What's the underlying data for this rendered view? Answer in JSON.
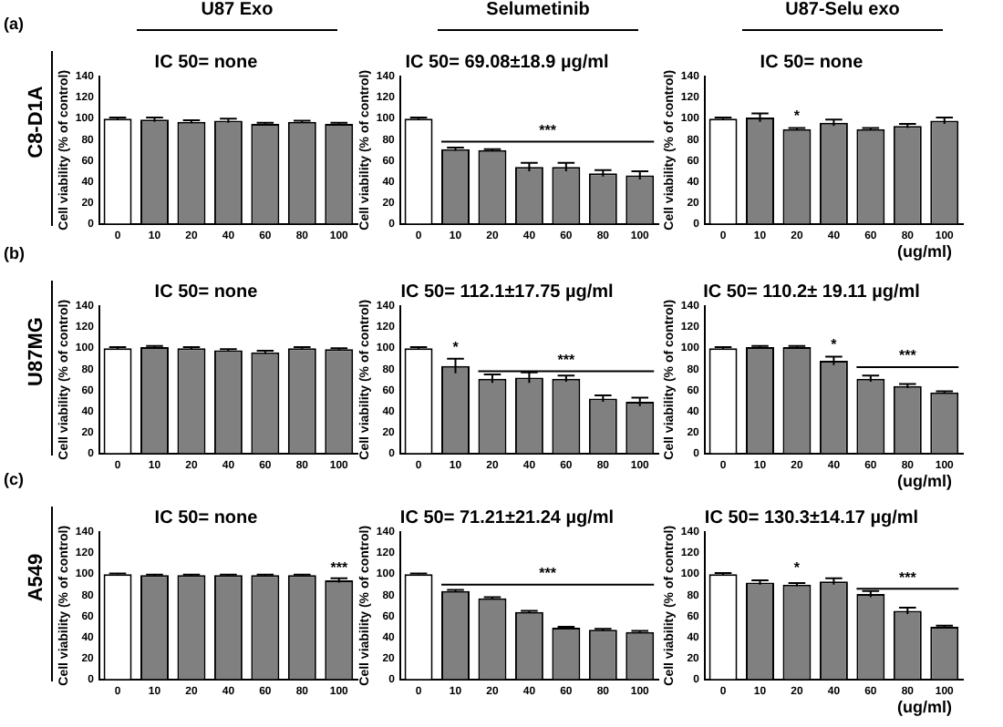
{
  "chart_data": [
    {
      "type": "bar",
      "subtitle": "U87 Exo",
      "title": "IC 50= none",
      "ylabel": "Cell viability (% of control)",
      "categories": [
        "0",
        "10",
        "20",
        "40",
        "60",
        "80",
        "100"
      ],
      "values": [
        100,
        99,
        97,
        98,
        95,
        97,
        95
      ],
      "errors": [
        1,
        2,
        1.5,
        2,
        1,
        1,
        1
      ],
      "colors": [
        "#ffffff",
        "#808080",
        "#808080",
        "#808080",
        "#808080",
        "#808080",
        "#808080"
      ],
      "ylim": [
        0,
        140
      ],
      "yticks": [
        0,
        20,
        40,
        60,
        80,
        100,
        120,
        140
      ],
      "annotations": [
        "(a)",
        "C8-D1A"
      ]
    },
    {
      "type": "bar",
      "subtitle": "Selumetinib",
      "title": "IC 50= 69.08±18.9 µg/ml",
      "ylabel": "Cell viability (% of control)",
      "categories": [
        "0",
        "10",
        "20",
        "40",
        "60",
        "80",
        "100"
      ],
      "values": [
        100,
        71,
        70,
        54,
        54,
        48,
        46
      ],
      "errors": [
        1,
        1.5,
        1,
        4,
        4,
        3,
        4
      ],
      "colors": [
        "#ffffff",
        "#808080",
        "#808080",
        "#808080",
        "#808080",
        "#808080",
        "#808080"
      ],
      "ylim": [
        0,
        140
      ],
      "yticks": [
        0,
        20,
        40,
        60,
        80,
        100,
        120,
        140
      ],
      "ref_lines": [
        {
          "axis": "y",
          "value": 78,
          "label": "***"
        }
      ]
    },
    {
      "type": "bar",
      "subtitle": "U87-Selu exo",
      "title": "IC 50= none",
      "ylabel": "Cell viability (% of control)",
      "xlabel": "(ug/ml)",
      "categories": [
        "0",
        "10",
        "20",
        "40",
        "60",
        "80",
        "100"
      ],
      "values": [
        100,
        101,
        90,
        96,
        90,
        93,
        98
      ],
      "errors": [
        1,
        4,
        1,
        3,
        1,
        2,
        3
      ],
      "colors": [
        "#ffffff",
        "#808080",
        "#808080",
        "#808080",
        "#808080",
        "#808080",
        "#808080"
      ],
      "ylim": [
        0,
        140
      ],
      "yticks": [
        0,
        20,
        40,
        60,
        80,
        100,
        120,
        140
      ],
      "annotations": [
        {
          "text": "*",
          "x": "20",
          "y": 95
        }
      ]
    },
    {
      "type": "bar",
      "title": "IC 50= none",
      "ylabel": "Cell viability (% of control)",
      "categories": [
        "0",
        "10",
        "20",
        "40",
        "60",
        "80",
        "100"
      ],
      "values": [
        100,
        101,
        100,
        98,
        96,
        100,
        99
      ],
      "errors": [
        1,
        1,
        1,
        1,
        1.5,
        1,
        1
      ],
      "colors": [
        "#ffffff",
        "#808080",
        "#808080",
        "#808080",
        "#808080",
        "#808080",
        "#808080"
      ],
      "ylim": [
        0,
        140
      ],
      "yticks": [
        0,
        20,
        40,
        60,
        80,
        100,
        120,
        140
      ],
      "annotations": [
        "(b)",
        "U87MG"
      ]
    },
    {
      "type": "bar",
      "title": "IC 50= 112.1±17.75 µg/ml",
      "ylabel": "Cell viability (% of control)",
      "categories": [
        "0",
        "10",
        "20",
        "40",
        "60",
        "80",
        "100"
      ],
      "values": [
        100,
        83,
        71,
        72,
        71,
        52,
        49
      ],
      "errors": [
        1,
        7,
        4,
        5,
        3,
        3,
        4
      ],
      "colors": [
        "#ffffff",
        "#808080",
        "#808080",
        "#808080",
        "#808080",
        "#808080",
        "#808080"
      ],
      "ylim": [
        0,
        140
      ],
      "yticks": [
        0,
        20,
        40,
        60,
        80,
        100,
        120,
        140
      ],
      "annotations": [
        {
          "text": "*",
          "x": "10",
          "y": 94
        }
      ],
      "ref_lines": [
        {
          "axis": "y",
          "value": 78,
          "label": "***"
        }
      ]
    },
    {
      "type": "bar",
      "title": "IC 50= 110.2± 19.11 µg/ml",
      "ylabel": "Cell viability (% of control)",
      "xlabel": "(ug/ml)",
      "categories": [
        "0",
        "10",
        "20",
        "40",
        "60",
        "80",
        "100"
      ],
      "values": [
        100,
        101,
        101,
        88,
        71,
        64,
        58
      ],
      "errors": [
        1,
        1,
        1,
        4,
        3,
        2,
        1
      ],
      "colors": [
        "#ffffff",
        "#808080",
        "#808080",
        "#808080",
        "#808080",
        "#808080",
        "#808080"
      ],
      "ylim": [
        0,
        140
      ],
      "yticks": [
        0,
        20,
        40,
        60,
        80,
        100,
        120,
        140
      ],
      "annotations": [
        {
          "text": "*",
          "x": "40",
          "y": 96
        }
      ],
      "ref_lines": [
        {
          "axis": "y",
          "value": 82,
          "label": "***"
        }
      ]
    },
    {
      "type": "bar",
      "title": "IC 50= none",
      "ylabel": "Cell viability (% of control)",
      "categories": [
        "0",
        "10",
        "20",
        "40",
        "60",
        "80",
        "100"
      ],
      "values": [
        100,
        99,
        99,
        99,
        99,
        99,
        94
      ],
      "errors": [
        0.5,
        0.5,
        0.5,
        0.5,
        0.5,
        0.5,
        2
      ],
      "colors": [
        "#ffffff",
        "#808080",
        "#808080",
        "#808080",
        "#808080",
        "#808080",
        "#808080"
      ],
      "ylim": [
        0,
        140
      ],
      "yticks": [
        0,
        20,
        40,
        60,
        80,
        100,
        120,
        140
      ],
      "annotations": [
        "(c)",
        "A549",
        {
          "text": "***",
          "x": "100",
          "y": 99
        }
      ]
    },
    {
      "type": "bar",
      "title": "IC 50= 71.21±21.24 µg/ml",
      "ylabel": "Cell viability (% of control)",
      "categories": [
        "0",
        "10",
        "20",
        "40",
        "60",
        "80",
        "100"
      ],
      "values": [
        100,
        84,
        77,
        64,
        49,
        47,
        45
      ],
      "errors": [
        0.5,
        1,
        1,
        1,
        1,
        1,
        1
      ],
      "colors": [
        "#ffffff",
        "#808080",
        "#808080",
        "#808080",
        "#808080",
        "#808080",
        "#808080"
      ],
      "ylim": [
        0,
        140
      ],
      "yticks": [
        0,
        20,
        40,
        60,
        80,
        100,
        120,
        140
      ],
      "ref_lines": [
        {
          "axis": "y",
          "value": 90,
          "label": "***"
        }
      ]
    },
    {
      "type": "bar",
      "title": "IC 50= 130.3±14.17 µg/ml",
      "ylabel": "Cell viability (% of control)",
      "xlabel": "(ug/ml)",
      "categories": [
        "0",
        "10",
        "20",
        "40",
        "60",
        "80",
        "100"
      ],
      "values": [
        100,
        92,
        90,
        93,
        81,
        65,
        50
      ],
      "errors": [
        1,
        2,
        1.5,
        3,
        3,
        3,
        1
      ],
      "colors": [
        "#ffffff",
        "#808080",
        "#808080",
        "#808080",
        "#808080",
        "#808080",
        "#808080"
      ],
      "ylim": [
        0,
        140
      ],
      "yticks": [
        0,
        20,
        40,
        60,
        80,
        100,
        120,
        140
      ],
      "annotations": [
        {
          "text": "*",
          "x": "20",
          "y": 99
        }
      ],
      "ref_lines": [
        {
          "axis": "y",
          "value": 86,
          "label": "***"
        }
      ]
    }
  ]
}
